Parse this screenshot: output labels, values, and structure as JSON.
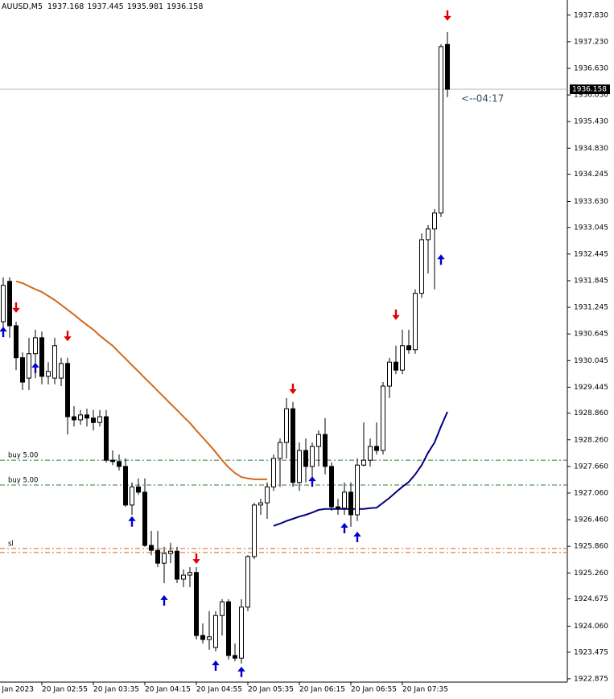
{
  "chart_data": {
    "type": "candlestick",
    "title": "AUUSD,M5",
    "date_label": "20 Jan 2023",
    "countdown": "<--04:17",
    "categories": [
      null,
      null,
      null,
      null,
      null,
      null,
      "20 Jan 02:55",
      null,
      null,
      null,
      null,
      null,
      null,
      null,
      "20 Jan 03:35",
      null,
      null,
      null,
      null,
      null,
      null,
      null,
      "20 Jan 04:15",
      null,
      null,
      null,
      null,
      null,
      null,
      null,
      "20 Jan 04:55",
      null,
      null,
      null,
      null,
      null,
      null,
      null,
      "20 Jan 05:35",
      null,
      null,
      null,
      null,
      null,
      null,
      null,
      "20 Jan 06:15",
      null,
      null,
      null,
      null,
      null,
      null,
      null,
      "20 Jan 06:55",
      null,
      null,
      null,
      null,
      null,
      null,
      null,
      "20 Jan 07:35",
      null,
      null,
      null,
      null,
      null,
      null,
      null
    ],
    "open": [
      1930.92,
      1931.83,
      1930.83,
      1930.11,
      1929.65,
      1930.2,
      1930.56,
      1929.69,
      1929.65,
      1929.65,
      1929.98,
      1928.78,
      1928.71,
      1928.82,
      1928.75,
      1928.65,
      1928.78,
      1927.8,
      1927.77,
      1927.66,
      1926.79,
      1927.2,
      1927.08,
      1925.88,
      1925.77,
      1925.48,
      1925.7,
      1925.75,
      1925.12,
      1925.21,
      1925.27,
      1923.85,
      1923.76,
      1923.58,
      1924.3,
      1924.61,
      1923.4,
      1923.34,
      1924.49,
      1925.63,
      1926.79,
      1926.84,
      1927.2,
      1927.84,
      1928.2,
      1928.96,
      1927.3,
      1928.02,
      1927.66,
      1928.11,
      1928.38,
      1927.66,
      1926.75,
      1926.72,
      1927.08,
      1926.57,
      1927.69,
      1927.8,
      1928.11,
      1928.02,
      1929.47,
      1930.01,
      1929.83,
      1930.38,
      1930.29,
      1931.56,
      1932.77,
      1933.01,
      1933.37,
      1937.168
    ],
    "high": [
      1931.92,
      1931.92,
      1930.92,
      1930.23,
      1930.56,
      1930.74,
      1930.7,
      1930.01,
      1930.56,
      1930.11,
      1930.11,
      1929.02,
      1928.93,
      1928.96,
      1928.93,
      1928.93,
      1928.93,
      1928.02,
      1927.93,
      1927.84,
      1927.3,
      1927.39,
      1927.39,
      1926.21,
      1926.21,
      1925.85,
      1925.94,
      1925.85,
      1925.34,
      1925.39,
      1925.39,
      1924.12,
      1924.4,
      1924.4,
      1924.67,
      1924.67,
      1923.67,
      1924.67,
      1925.66,
      1926.84,
      1926.93,
      1927.3,
      1927.93,
      1928.29,
      1929.2,
      1929.11,
      1928.2,
      1928.29,
      1928.2,
      1928.47,
      1928.75,
      1927.75,
      1926.93,
      1927.3,
      1927.3,
      1927.84,
      1928.65,
      1928.29,
      1928.65,
      1929.56,
      1930.11,
      1930.38,
      1930.74,
      1930.74,
      1931.65,
      1932.91,
      1933.1,
      1933.46,
      1937.17,
      1937.445
    ],
    "low": [
      1930.59,
      1930.56,
      1929.83,
      1929.38,
      1929.38,
      1929.65,
      1929.51,
      1929.51,
      1929.51,
      1929.47,
      1928.38,
      1928.56,
      1928.6,
      1928.56,
      1928.47,
      1928.56,
      1927.75,
      1927.69,
      1927.57,
      1926.75,
      1926.57,
      1927.02,
      1925.85,
      1925.66,
      1925.39,
      1925.03,
      1925.48,
      1925.03,
      1924.94,
      1924.94,
      1923.76,
      1923.67,
      1923.53,
      1923.49,
      1923.85,
      1923.31,
      1923.27,
      1923.22,
      1924.4,
      1925.57,
      1926.57,
      1926.48,
      1927.11,
      1927.2,
      1927.84,
      1927.2,
      1927.11,
      1927.3,
      1927.39,
      1927.66,
      1927.48,
      1926.66,
      1926.57,
      1926.57,
      1926.3,
      1926.43,
      1927.66,
      1927.66,
      1927.93,
      1927.93,
      1929.2,
      1929.74,
      1929.74,
      1930.2,
      1930.2,
      1931.46,
      1932.01,
      1931.65,
      1933.28,
      1935.981
    ],
    "close": [
      1931.74,
      1930.83,
      1930.11,
      1929.56,
      1930.2,
      1930.56,
      1929.69,
      1929.8,
      1930.38,
      1929.98,
      1928.78,
      1928.71,
      1928.82,
      1928.75,
      1928.65,
      1928.78,
      1927.8,
      1927.77,
      1927.66,
      1926.79,
      1927.2,
      1927.08,
      1925.88,
      1925.77,
      1925.48,
      1925.7,
      1925.75,
      1925.12,
      1925.21,
      1925.27,
      1923.85,
      1923.76,
      1923.82,
      1924.3,
      1924.61,
      1923.4,
      1923.34,
      1924.49,
      1925.63,
      1926.79,
      1926.84,
      1927.2,
      1927.84,
      1928.2,
      1928.96,
      1927.3,
      1928.02,
      1927.66,
      1928.11,
      1928.38,
      1927.66,
      1926.75,
      1926.72,
      1927.08,
      1926.57,
      1927.69,
      1927.8,
      1928.11,
      1928.02,
      1929.47,
      1930.01,
      1929.83,
      1930.38,
      1930.29,
      1931.56,
      1932.77,
      1933.01,
      1933.37,
      1937.12,
      1936.158
    ],
    "lines": [
      {
        "color": "#d2691e",
        "values": [
          null,
          null,
          1931.83,
          1931.79,
          1931.72,
          1931.65,
          1931.59,
          1931.5,
          1931.41,
          1931.3,
          1931.19,
          1931.08,
          1930.96,
          1930.85,
          1930.74,
          1930.61,
          1930.49,
          1930.38,
          1930.23,
          1930.09,
          1929.94,
          1929.8,
          1929.65,
          1929.51,
          1929.36,
          1929.22,
          1929.07,
          1928.93,
          1928.78,
          1928.64,
          1928.47,
          1928.31,
          1928.15,
          1927.98,
          1927.8,
          1927.64,
          1927.51,
          1927.42,
          1927.39,
          1927.37,
          1927.37,
          1927.37,
          null,
          null,
          null,
          null,
          null,
          null,
          null,
          null,
          null,
          null,
          null,
          null,
          null,
          null,
          null,
          null,
          null,
          null,
          null,
          null,
          null,
          null,
          null,
          null,
          null,
          null,
          null,
          null
        ]
      },
      {
        "color": "#000080",
        "values": [
          null,
          null,
          null,
          null,
          null,
          null,
          null,
          null,
          null,
          null,
          null,
          null,
          null,
          null,
          null,
          null,
          null,
          null,
          null,
          null,
          null,
          null,
          null,
          null,
          null,
          null,
          null,
          null,
          null,
          null,
          null,
          null,
          null,
          null,
          null,
          null,
          null,
          null,
          null,
          null,
          null,
          null,
          1926.32,
          1926.37,
          1926.43,
          1926.48,
          1926.53,
          1926.57,
          1926.62,
          1926.68,
          1926.7,
          1926.7,
          1926.7,
          1926.7,
          1926.7,
          1926.7,
          1926.7,
          1926.72,
          1926.73,
          1926.84,
          1926.95,
          1927.08,
          1927.2,
          1927.31,
          1927.48,
          1927.69,
          1927.97,
          1928.2,
          1928.56,
          1928.89
        ]
      }
    ],
    "levels": [
      {
        "label": "buy 5.00",
        "value": 1927.8,
        "color": "#2e7d32"
      },
      {
        "label": "buy 5.00",
        "value": 1927.24,
        "color": "#2e7d32"
      },
      {
        "label": "sl",
        "value": 1925.81,
        "color": "#d2691e"
      },
      {
        "value": 1925.72,
        "color": "#d2691e"
      }
    ],
    "sell_signals": [
      {
        "index": 2,
        "price": 1931.23
      },
      {
        "index": 10,
        "price": 1930.59
      },
      {
        "index": 30,
        "price": 1925.57
      },
      {
        "index": 45,
        "price": 1929.4
      },
      {
        "index": 61,
        "price": 1931.07
      },
      {
        "index": 69,
        "price": 1937.81
      }
    ],
    "buy_signals": [
      {
        "index": 0,
        "price": 1930.7
      },
      {
        "index": 5,
        "price": 1929.89
      },
      {
        "index": 20,
        "price": 1926.43
      },
      {
        "index": 25,
        "price": 1924.65
      },
      {
        "index": 33,
        "price": 1923.18
      },
      {
        "index": 37,
        "price": 1923.04
      },
      {
        "index": 48,
        "price": 1927.33
      },
      {
        "index": 53,
        "price": 1926.28
      },
      {
        "index": 55,
        "price": 1926.08
      },
      {
        "index": 68,
        "price": 1932.33
      }
    ],
    "sell_color": "#e00000",
    "buy_color": "#0000cc",
    "ylim": [
      1922.8,
      1938.17
    ],
    "yticks": [
      {
        "value": 1937.83,
        "label": "1937.830"
      },
      {
        "value": 1937.23,
        "label": "1937.230"
      },
      {
        "value": 1936.63,
        "label": "1936.630"
      },
      {
        "value": 1936.03,
        "label": "1936.030"
      },
      {
        "value": 1935.43,
        "label": "1935.430"
      },
      {
        "value": 1934.83,
        "label": "1934.830"
      },
      1934.245,
      {
        "value": 1933.63,
        "label": "1933.630"
      },
      1933.045,
      1932.445,
      1931.845,
      1931.245,
      1930.645,
      1930.045,
      1929.445,
      {
        "value": 1928.86,
        "label": "1928.860"
      },
      {
        "value": 1928.26,
        "label": "1928.260"
      },
      {
        "value": 1927.66,
        "label": "1927.660"
      },
      {
        "value": 1927.06,
        "label": "1927.060"
      },
      {
        "value": 1926.46,
        "label": "1926.460"
      },
      {
        "value": 1925.86,
        "label": "1925.860"
      },
      {
        "value": 1925.26,
        "label": "1925.260"
      },
      1924.675,
      {
        "value": 1924.06,
        "label": "1924.060"
      },
      1923.475,
      1922.875
    ],
    "grid": false
  }
}
